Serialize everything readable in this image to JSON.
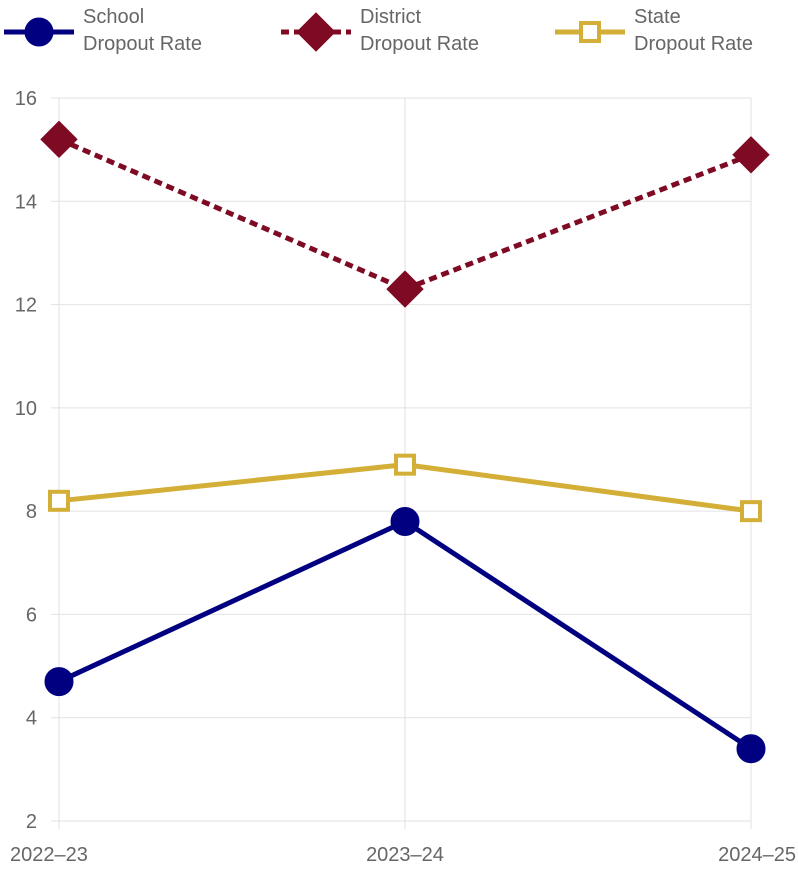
{
  "chart_data": {
    "type": "line",
    "categories": [
      "2022–23",
      "2023–24",
      "2024–25"
    ],
    "ylim": [
      2,
      16
    ],
    "yticks": [
      2,
      4,
      6,
      8,
      10,
      12,
      14,
      16
    ],
    "grid": true,
    "legend_position": "top",
    "series": [
      {
        "key": "school",
        "name_lines": [
          "School",
          "Dropout Rate"
        ],
        "values": [
          4.7,
          7.8,
          3.4
        ],
        "color": "#000080",
        "marker": "circle",
        "line_style": "solid"
      },
      {
        "key": "district",
        "name_lines": [
          "District",
          "Dropout Rate"
        ],
        "values": [
          15.2,
          12.3,
          14.9
        ],
        "color": "#7f0a24",
        "marker": "diamond",
        "line_style": "dashed"
      },
      {
        "key": "state",
        "name_lines": [
          "State",
          "Dropout Rate"
        ],
        "values": [
          8.2,
          8.9,
          8.0
        ],
        "color": "#d4af37",
        "marker": "square-open",
        "line_style": "solid"
      }
    ]
  }
}
